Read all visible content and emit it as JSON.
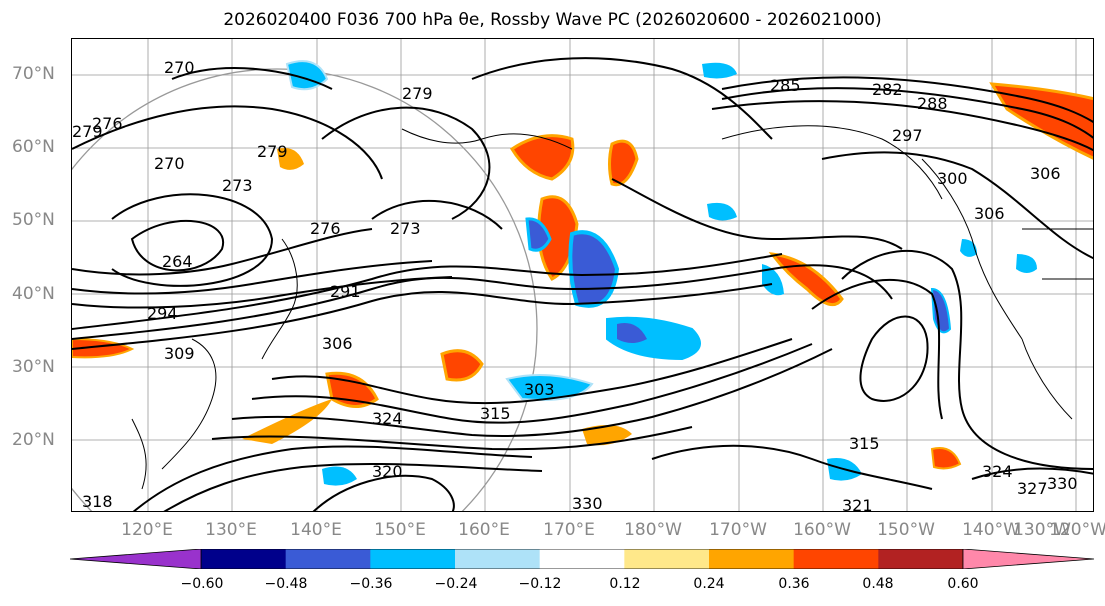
{
  "title": "2026020400 F036 700 hPa θe, Rossby Wave PC (2026020600 - 2026021000)",
  "lat_labels": [
    "70°N",
    "60°N",
    "50°N",
    "40°N",
    "30°N",
    "20°N"
  ],
  "lon_labels": [
    "120°E",
    "130°E",
    "140°E",
    "150°E",
    "160°E",
    "170°E",
    "180°W",
    "170°W",
    "160°W",
    "150°W",
    "140°W",
    "130°W",
    "120°W"
  ],
  "colorbar": {
    "ticks": [
      "−0.60",
      "−0.48",
      "−0.36",
      "−0.24",
      "−0.12",
      "0.12",
      "0.24",
      "0.36",
      "0.48",
      "0.60"
    ],
    "colors": [
      "#9932cc",
      "#00008b",
      "#3a5bd6",
      "#00bfff",
      "#aee2f8",
      "#ffffff",
      "#ffe88a",
      "#ffa500",
      "#ff4500",
      "#b22222",
      "#ff88aa"
    ]
  },
  "contour_labels": [
    "270",
    "276",
    "279",
    "279",
    "270",
    "273",
    "264",
    "276",
    "273",
    "279",
    "291",
    "294",
    "309",
    "306",
    "303",
    "315",
    "324",
    "318",
    "320",
    "330",
    "285",
    "282",
    "288",
    "297",
    "300",
    "306",
    "306",
    "315",
    "324",
    "327",
    "330",
    "321"
  ]
}
